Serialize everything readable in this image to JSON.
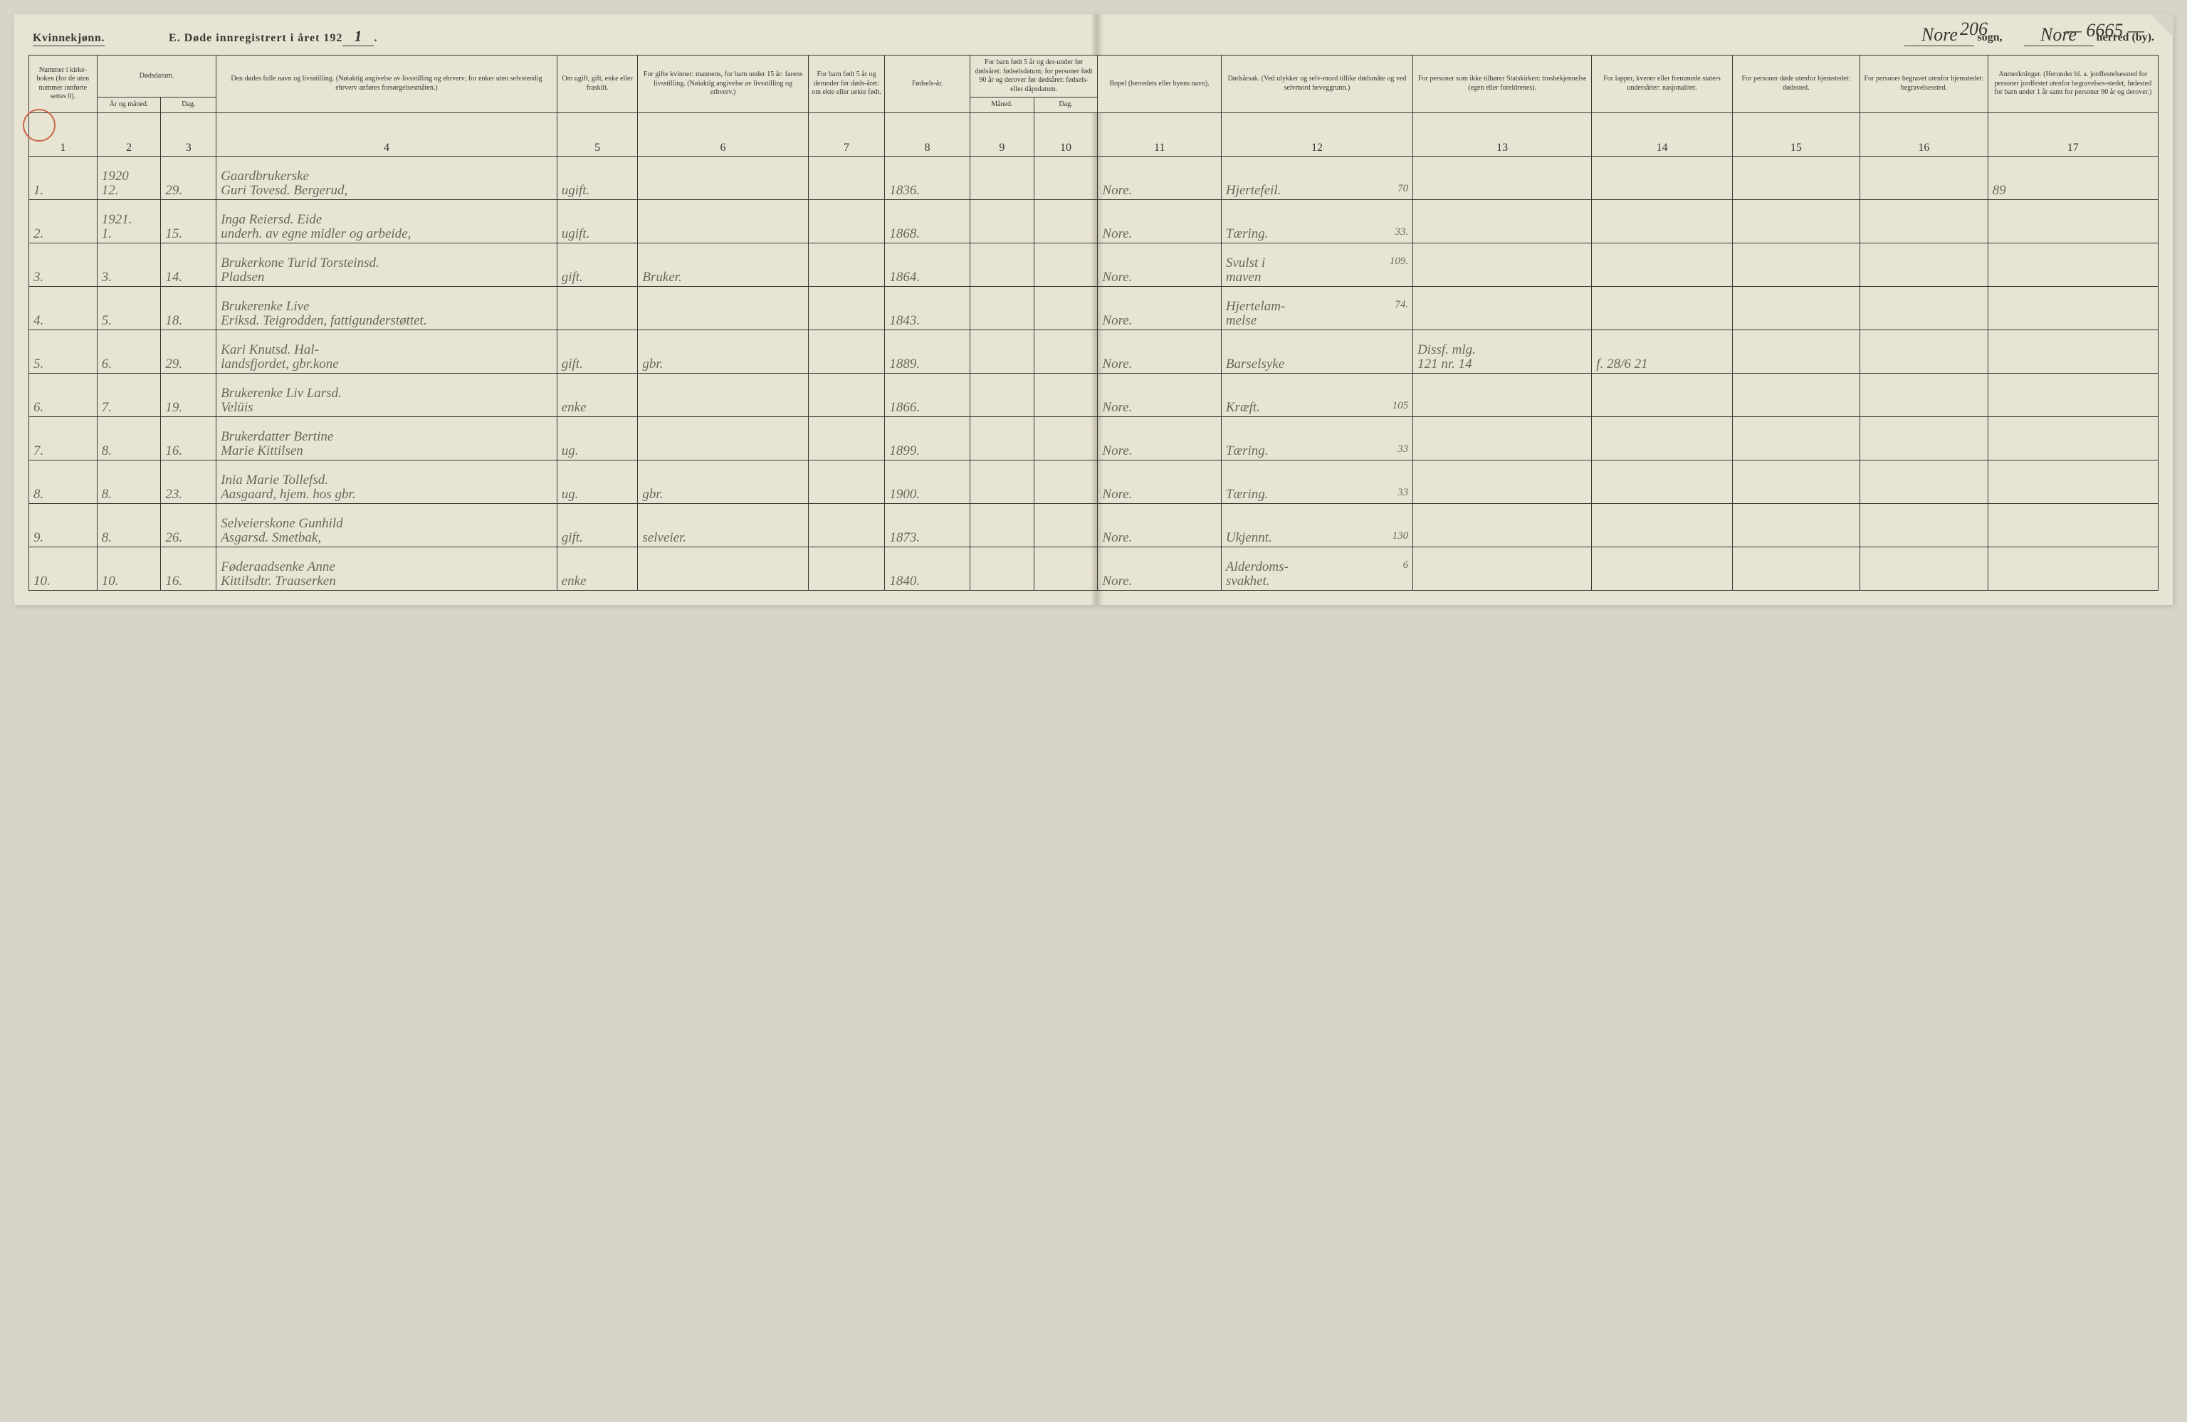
{
  "header": {
    "gender_label": "Kvinnekjønn.",
    "title_prefix": "E.   Døde innregistrert i året 192",
    "year_suffix_handwritten": "1",
    "title_period": ".",
    "sogn_value": "Nore",
    "sogn_label": "sogn,",
    "herred_value": "Nore",
    "herred_label": "herred (by).",
    "page_number": "206",
    "folio": "— 6665 —"
  },
  "columns": {
    "c1": "Nummer i kirke-boken (for de uten nummer innførte settes 0).",
    "c2": "Dødsdatum.",
    "c2a": "År og måned.",
    "c2b": "Dag.",
    "c3": "Den dødes fulle navn og livsstilling. (Nøiaktig angivelse av livsstilling og ehrverv; for enker uten selvstendig ehrverv anføres forsørgelsesmåten.)",
    "c4": "Om ugift, gift, enke eller fraskilt.",
    "c5": "For gifte kvinner: mannens, for barn under 15 år: farens livsstilling. (Nøiaktig angivelse av livsstilling og erhverv.)",
    "c6": "For barn født 5 år og derunder før døds-året: om ekte eller uekte født.",
    "c7": "Fødsels-år.",
    "c8": "For barn født 5 år og der-under før dødsåret: fødselsdatum; for personer født 90 år og derover før dødsåret: fødsels- eller dåpsdatum.",
    "c8a": "Måned.",
    "c8b": "Dag.",
    "c9": "Bopel (herredets eller byens navn).",
    "c10": "Dødsårsak. (Ved ulykker og selv-mord tillike dødsmåte og ved selvmord beveggrunn.)",
    "c11": "For personer som ikke tilhører Statskirken: trosbekjennelse (egen eller foreldrenes).",
    "c12": "For lapper, kvener eller fremmede staters undersåtter: nasjonalitet.",
    "c13": "For personer døde utenfor hjemstedet: dødssted.",
    "c14": "For personer begravet utenfor hjemstedet: begravelsessted.",
    "c15": "Anmerkninger. (Herunder bl. a. jordfestelsessted for personer jordfestet utenfor begravelses-stedet, fødested for barn under 1 år samt for personer 90 år og derover.)"
  },
  "colnums": [
    "1",
    "2",
    "3",
    "4",
    "5",
    "6",
    "7",
    "8",
    "9",
    "10",
    "11",
    "12",
    "13",
    "14",
    "15",
    "16",
    "17"
  ],
  "subcol_note": "",
  "rows": [
    {
      "num": "1.",
      "year_month": "1920\n12.",
      "day": "29.",
      "name": "Gaardbrukerske\nGuri Tovesd. Bergerud,",
      "status": "ugift.",
      "spouse": "",
      "ekte": "",
      "birthyear": "1836.",
      "bm": "",
      "bd": "",
      "bopel": "Nore.",
      "cause": "Hjertefeil.",
      "age": "70",
      "c11": "",
      "c12": "",
      "c13": "",
      "c14": "",
      "remark": "89"
    },
    {
      "num": "2.",
      "year_month": "1921.\n1.",
      "day": "15.",
      "name": "Inga Reiersd. Eide\nunderh. av egne midler og arbeide,",
      "status": "ugift.",
      "spouse": "",
      "ekte": "",
      "birthyear": "1868.",
      "bm": "",
      "bd": "",
      "bopel": "Nore.",
      "cause": "Tæring.",
      "age": "33.",
      "c11": "",
      "c12": "",
      "c13": "",
      "c14": "",
      "remark": ""
    },
    {
      "num": "3.",
      "year_month": "3.",
      "day": "14.",
      "name": "Brukerkone Turid Torsteinsd.\nPladsen",
      "status": "gift.",
      "spouse": "Bruker.",
      "ekte": "",
      "birthyear": "1864.",
      "bm": "",
      "bd": "",
      "bopel": "Nore.",
      "cause": "Svulst i\nmaven",
      "age": "109.",
      "c11": "",
      "c12": "",
      "c13": "",
      "c14": "",
      "remark": ""
    },
    {
      "num": "4.",
      "year_month": "5.",
      "day": "18.",
      "name": "Brukerenke Live\nEriksd. Teigrodden, fattigunderstøttet.",
      "status": "",
      "spouse": "",
      "ekte": "",
      "birthyear": "1843.",
      "bm": "",
      "bd": "",
      "bopel": "Nore.",
      "cause": "Hjertelam-\nmelse",
      "age": "74.",
      "c11": "",
      "c12": "",
      "c13": "",
      "c14": "",
      "remark": ""
    },
    {
      "num": "5.",
      "year_month": "6.",
      "day": "29.",
      "name": "Kari Knutsd. Hal-\nlandsfjordet, gbr.kone",
      "status": "gift.",
      "spouse": "gbr.",
      "ekte": "",
      "birthyear": "1889.",
      "bm": "",
      "bd": "",
      "bopel": "Nore.",
      "cause": "Barselsyke",
      "age": "",
      "c11": "Dissf. mlg.\n121 nr. 14",
      "c12": "f. 28/6 21",
      "c13": "",
      "c14": "",
      "remark": ""
    },
    {
      "num": "6.",
      "year_month": "7.",
      "day": "19.",
      "name": "Brukerenke Liv Larsd.\nVelüis",
      "status": "enke",
      "spouse": "",
      "ekte": "",
      "birthyear": "1866.",
      "bm": "",
      "bd": "",
      "bopel": "Nore.",
      "cause": "Kræft.",
      "age": "105",
      "c11": "",
      "c12": "",
      "c13": "",
      "c14": "",
      "remark": ""
    },
    {
      "num": "7.",
      "year_month": "8.",
      "day": "16.",
      "name": "Brukerdatter Bertine\nMarie Kittilsen",
      "status": "ug.",
      "spouse": "",
      "ekte": "",
      "birthyear": "1899.",
      "bm": "",
      "bd": "",
      "bopel": "Nore.",
      "cause": "Tæring.",
      "age": "33",
      "c11": "",
      "c12": "",
      "c13": "",
      "c14": "",
      "remark": ""
    },
    {
      "num": "8.",
      "year_month": "8.",
      "day": "23.",
      "name": "Inia Marie Tollefsd.\nAasgaard, hjem. hos gbr.",
      "status": "ug.",
      "spouse": "gbr.",
      "ekte": "",
      "birthyear": "1900.",
      "bm": "",
      "bd": "",
      "bopel": "Nore.",
      "cause": "Tæring.",
      "age": "33",
      "c11": "",
      "c12": "",
      "c13": "",
      "c14": "",
      "remark": ""
    },
    {
      "num": "9.",
      "year_month": "8.",
      "day": "26.",
      "name": "Selveierskone Gunhild\nAsgarsd. Smetbak,",
      "status": "gift.",
      "spouse": "selveier.",
      "ekte": "",
      "birthyear": "1873.",
      "bm": "",
      "bd": "",
      "bopel": "Nore.",
      "cause": "Ukjennt.",
      "age": "130",
      "c11": "",
      "c12": "",
      "c13": "",
      "c14": "",
      "remark": ""
    },
    {
      "num": "10.",
      "year_month": "10.",
      "day": "16.",
      "name": "Føderaadsenke Anne\nKittilsdtr. Traaserken",
      "status": "enke",
      "spouse": "",
      "ekte": "",
      "birthyear": "1840.",
      "bm": "",
      "bd": "",
      "bopel": "Nore.",
      "cause": "Alderdoms-\nsvakhet.",
      "age": "6",
      "c11": "",
      "c12": "",
      "c13": "",
      "c14": "",
      "remark": ""
    }
  ],
  "styling": {
    "page_bg": "#d8d4c8",
    "paper_bg": "#e8e4d4",
    "ink": "#3a3630",
    "handwriting_color": "#6b6658",
    "red_circle": "#c96a4a",
    "header_fontsize_pt": 11,
    "body_fontsize_pt": 10,
    "hand_fontsize_pt": 14,
    "col_widths_pct": [
      3.2,
      3.0,
      2.6,
      16.0,
      3.8,
      8.0,
      3.6,
      4.0,
      3.0,
      3.0,
      5.8,
      9.0,
      8.4,
      6.6,
      6.0,
      6.0,
      8.0
    ]
  }
}
